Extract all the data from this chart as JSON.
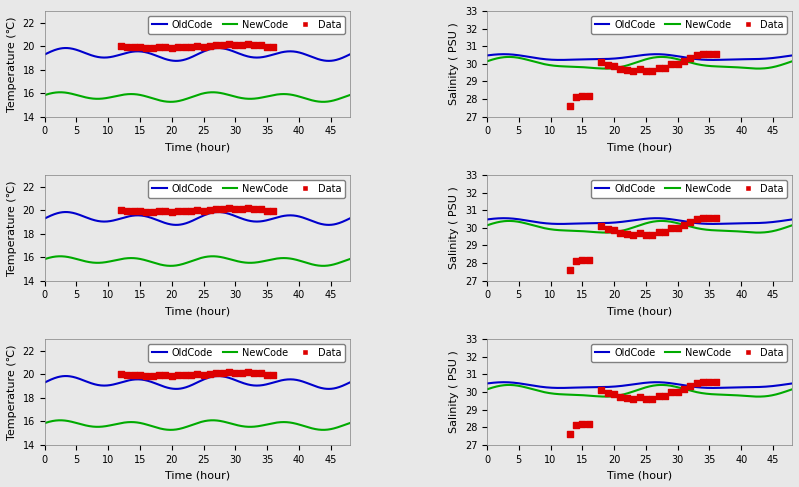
{
  "fig_width": 7.99,
  "fig_height": 4.87,
  "dpi": 100,
  "background": "#e8e8e8",
  "blue_color": "#0000cc",
  "green_color": "#00aa00",
  "red_color": "#dd0000",
  "temp_ylim": [
    14,
    23
  ],
  "temp_yticks": [
    14,
    16,
    18,
    20,
    22
  ],
  "salt_ylim": [
    27,
    33
  ],
  "salt_yticks": [
    27,
    28,
    29,
    30,
    31,
    32,
    33
  ],
  "xlim": [
    0,
    48
  ],
  "xticks": [
    0,
    5,
    10,
    15,
    20,
    25,
    30,
    35,
    40,
    45
  ],
  "xlabel": "Time (hour)",
  "temp_ylabel": "Temperature (℃)",
  "salt_ylabel": "Salinity ( PSU )"
}
